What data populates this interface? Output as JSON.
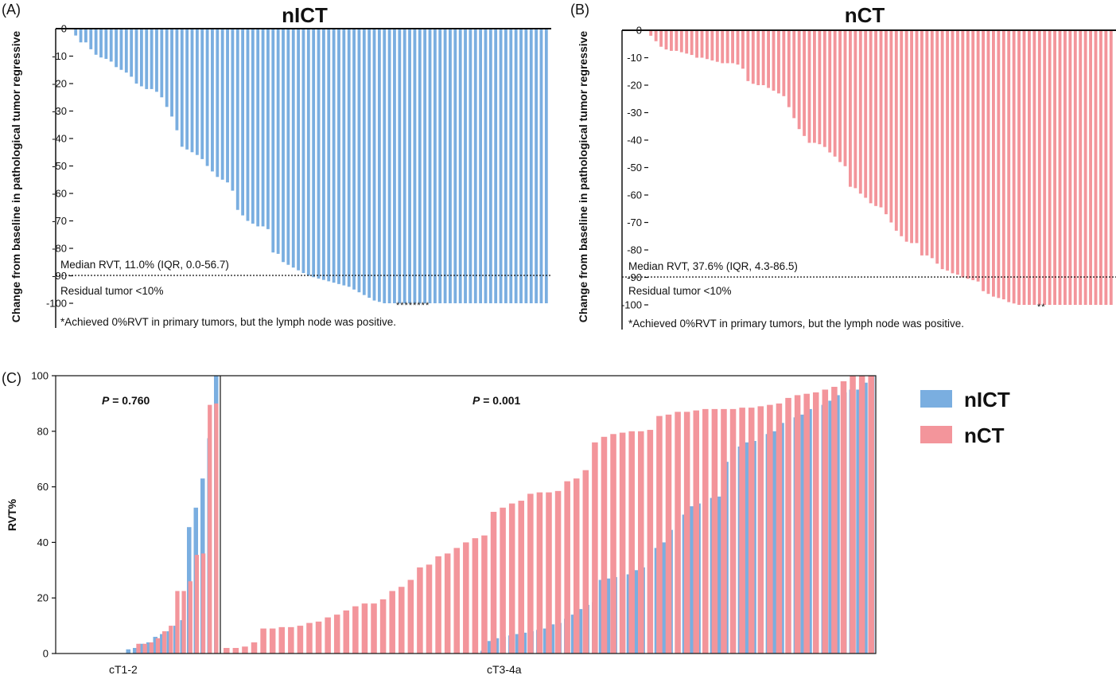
{
  "colors": {
    "nICT": "#7aaee0",
    "nCT": "#f3959b",
    "axis": "#111111"
  },
  "panels": {
    "A": {
      "letter": "(A)",
      "title": "nICT",
      "ylabel": "Change from baseline in pathological tumor regressive",
      "median_text": "Median RVT, 11.0% (IQR, 0.0-56.7)",
      "residual_text": "Residual tumor <10%",
      "footnote": "*Achieved 0%RVT in primary tumors, but the lymph node was positive.",
      "asterisks": "********"
    },
    "B": {
      "letter": "(B)",
      "title": "nCT",
      "ylabel": "Change from baseline in pathological tumor regressive",
      "median_text": "Median RVT, 37.6% (IQR, 4.3-86.5)",
      "residual_text": "Residual tumor <10%",
      "footnote": "*Achieved 0%RVT in primary tumors, but the lymph node was positive.",
      "asterisks": "**"
    },
    "C": {
      "letter": "(C)",
      "ylabel": "RVT%",
      "p_left_label": "P",
      "p_left_value": " = 0.760",
      "p_right_label": "P",
      "p_right_value": " = 0.001",
      "cat_left": "cT1-2",
      "cat_right": "cT3-4a"
    }
  },
  "legend": {
    "items": [
      {
        "name": "nICT"
      },
      {
        "name": "nCT"
      }
    ]
  },
  "chart_data": [
    {
      "type": "bar",
      "panel": "A",
      "title": "nICT",
      "xlabel": "",
      "ylabel": "Change from baseline in pathological tumor regressive",
      "ylim": [
        -100,
        0
      ],
      "yticks": [
        0,
        -10,
        -20,
        -30,
        -40,
        -50,
        -60,
        -70,
        -80,
        -90,
        -100
      ],
      "reference_line": -90,
      "series": [
        {
          "values": [
            -2.5,
            -5,
            -5,
            -7.5,
            -9.5,
            -10.5,
            -11,
            -12,
            -14,
            -15,
            -16,
            -17.5,
            -20,
            -21,
            -22,
            -22,
            -23,
            -25,
            -28.5,
            -32,
            -37,
            -43,
            -44,
            -45,
            -46,
            -47.5,
            -50,
            -52,
            -54,
            -55,
            -56,
            -59,
            -66,
            -68,
            -70,
            -71,
            -72,
            -72,
            -73,
            -81.5,
            -82,
            -85,
            -86,
            -87,
            -88,
            -89,
            -90,
            -90.5,
            -91,
            -91.5,
            -92,
            -92.5,
            -93,
            -93.5,
            -94,
            -95,
            -96,
            -97,
            -98,
            -99,
            -99.5,
            -100,
            -100,
            -100,
            -100,
            -100,
            -100,
            -100,
            -100,
            -100,
            -100,
            -100,
            -100,
            -100,
            -100,
            -100,
            -100,
            -100,
            -100,
            -100,
            -100,
            -100,
            -100,
            -100,
            -100,
            -100,
            -100,
            -100,
            -100,
            -100,
            -100,
            -100,
            -100,
            -100
          ]
        }
      ]
    },
    {
      "type": "bar",
      "panel": "B",
      "title": "nCT",
      "xlabel": "",
      "ylabel": "Change from baseline in pathological tumor regressive",
      "ylim": [
        -100,
        0
      ],
      "yticks": [
        0,
        -10,
        -20,
        -30,
        -40,
        -50,
        -60,
        -70,
        -80,
        -90,
        -100
      ],
      "reference_line": -90,
      "series": [
        {
          "values": [
            -2,
            -4,
            -6,
            -7,
            -7.5,
            -7.5,
            -8,
            -8.5,
            -9,
            -10,
            -10,
            -10.5,
            -11,
            -11.5,
            -12,
            -12,
            -12,
            -12.5,
            -14,
            -18.5,
            -19.5,
            -20,
            -20,
            -21,
            -22,
            -23,
            -24,
            -28,
            -32,
            -36,
            -38.5,
            -41,
            -41,
            -41.5,
            -42.5,
            -44.5,
            -46,
            -48,
            -49.5,
            -57,
            -57.5,
            -59.5,
            -61,
            -63,
            -64,
            -64.5,
            -67,
            -70,
            -73,
            -75,
            -77,
            -77.5,
            -77.5,
            -82,
            -82,
            -83,
            -85,
            -87,
            -87.5,
            -88.5,
            -89,
            -90,
            -90.5,
            -91,
            -91.5,
            -95,
            -96,
            -97,
            -97.5,
            -98,
            -99,
            -99.5,
            -100,
            -100,
            -100,
            -100,
            -100,
            -100,
            -100,
            -100,
            -100,
            -100,
            -100,
            -100,
            -100,
            -100,
            -100,
            -100,
            -100,
            -100,
            -100
          ]
        }
      ]
    },
    {
      "type": "bar",
      "panel": "C",
      "xlabel": "",
      "ylabel": "RVT%",
      "ylim": [
        0,
        100
      ],
      "yticks": [
        0,
        20,
        40,
        60,
        80,
        100
      ],
      "categories": [
        "cT1-2",
        "cT3-4a"
      ],
      "series": [
        {
          "name": "nICT",
          "group_cT1_2": [
            0,
            0,
            0,
            0,
            0,
            0,
            0,
            0,
            0,
            0,
            1.5,
            2,
            3.5,
            4,
            6,
            7,
            8,
            10,
            12,
            45.5,
            52.5,
            63,
            77.5,
            100
          ],
          "group_cT3_4a": [
            0,
            0,
            0,
            0,
            0,
            0,
            0,
            0,
            0,
            0,
            0,
            0,
            0,
            0,
            0,
            0,
            0,
            0,
            0,
            0,
            0,
            0,
            0,
            0,
            0,
            0,
            0,
            0,
            0,
            0,
            0,
            0,
            0,
            0,
            0,
            0,
            0.5,
            1,
            4.5,
            5.5,
            6,
            6.5,
            7,
            7.5,
            8,
            8.5,
            9,
            10.5,
            11,
            12.5,
            14,
            16,
            17.5,
            18.5,
            26.5,
            27,
            27.5,
            28,
            28.5,
            30,
            31,
            33,
            38,
            40,
            44.5,
            45,
            50,
            53,
            54,
            55,
            56,
            56.5,
            69,
            71,
            74.5,
            76,
            76.5,
            78,
            79,
            80,
            83,
            84,
            85,
            86,
            88,
            89,
            89.5,
            91,
            93,
            94,
            95,
            95,
            97.5,
            100
          ]
        },
        {
          "name": "nCT",
          "group_cT1_2": [
            0,
            0,
            0,
            0,
            0,
            0,
            0,
            0,
            0,
            0,
            0,
            0,
            3.5,
            3.5,
            4,
            5.5,
            8,
            10,
            22.5,
            22.5,
            26,
            35.5,
            36,
            89.5,
            90
          ],
          "group_cT3_4a": [
            2,
            2,
            2.5,
            4,
            9,
            9,
            9.5,
            9.5,
            10,
            11,
            11.5,
            13,
            14,
            15.5,
            17,
            18,
            18,
            19.5,
            22.5,
            24,
            26.5,
            31,
            32,
            35,
            36,
            38,
            40,
            41.5,
            42.5,
            51,
            52.5,
            54,
            55,
            57.5,
            58,
            58,
            58.5,
            62,
            63,
            66,
            76,
            78,
            79,
            79.5,
            80,
            80,
            80.5,
            85.5,
            86,
            87,
            87,
            87.5,
            88,
            88,
            88,
            88,
            88.5,
            88.5,
            89,
            89.5,
            90,
            92,
            93,
            93.5,
            94,
            95,
            96,
            98,
            100,
            100,
            100
          ]
        }
      ]
    }
  ]
}
